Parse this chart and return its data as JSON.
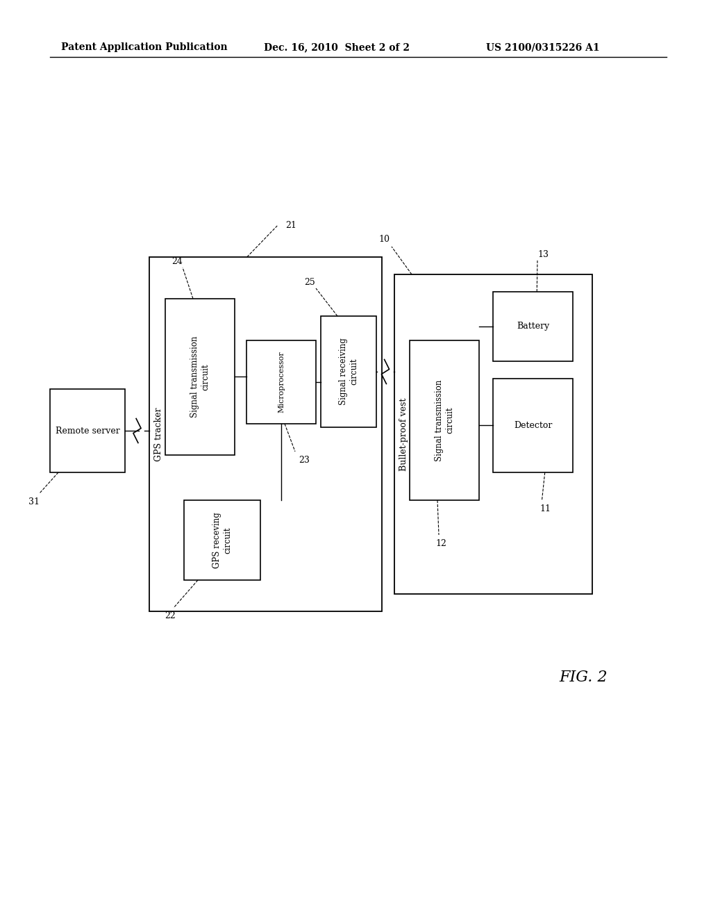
{
  "background_color": "#ffffff",
  "header_left": "Patent Application Publication",
  "header_mid": "Dec. 16, 2010  Sheet 2 of 2",
  "header_right": "US 2100/0315226 A1",
  "fig_label": "FIG. 2"
}
